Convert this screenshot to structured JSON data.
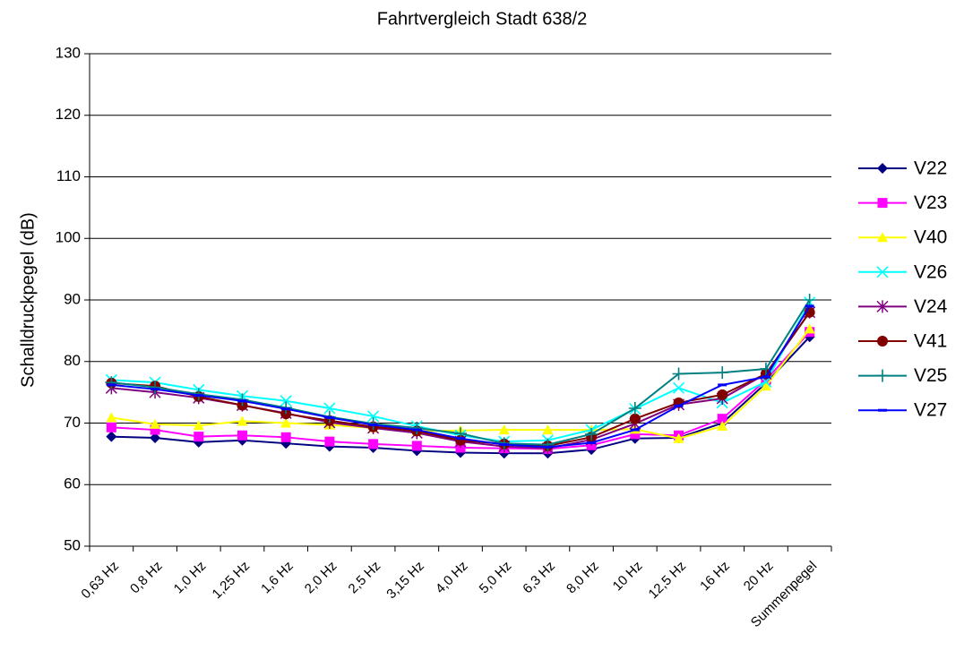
{
  "chart_data": {
    "type": "line",
    "title": "Fahrtvergleich Stadt 638/2",
    "y_label": "Schalldruckpegel (dB)",
    "categories": [
      "0,63 Hz",
      "0,8 Hz",
      "1,0 Hz",
      "1,25 Hz",
      "1,6 Hz",
      "2,0 Hz",
      "2,5 Hz",
      "3,15 Hz",
      "4,0 Hz",
      "5,0 Hz",
      "6,3 Hz",
      "8,0 Hz",
      "10 Hz",
      "12,5 Hz",
      "16 Hz",
      "20 Hz",
      "Summenpegel"
    ],
    "ylim": [
      50,
      130
    ],
    "yticks": [
      50,
      60,
      70,
      80,
      90,
      100,
      110,
      120,
      130
    ],
    "grid": true,
    "legend": "right",
    "series": [
      {
        "name": "V22",
        "color": "#000080",
        "marker": "diamond",
        "values": [
          67.8,
          67.6,
          66.9,
          67.2,
          66.7,
          66.2,
          66.0,
          65.5,
          65.2,
          65.1,
          65.1,
          65.7,
          67.5,
          67.6,
          70.0,
          76.5,
          84.0
        ]
      },
      {
        "name": "V23",
        "color": "#ff00ff",
        "marker": "square",
        "values": [
          69.3,
          68.9,
          67.8,
          68.0,
          67.7,
          67.0,
          66.6,
          66.3,
          66.0,
          65.9,
          65.8,
          66.4,
          68.2,
          68.0,
          70.7,
          77.0,
          84.8
        ]
      },
      {
        "name": "V40",
        "color": "#ffff00",
        "marker": "triangle",
        "values": [
          70.9,
          69.8,
          69.6,
          70.3,
          70.0,
          69.7,
          69.2,
          68.7,
          68.8,
          68.9,
          68.9,
          68.9,
          69.0,
          67.5,
          69.5,
          76.0,
          85.3
        ]
      },
      {
        "name": "V26",
        "color": "#00ffff",
        "marker": "x",
        "values": [
          77.0,
          76.6,
          75.4,
          74.4,
          73.6,
          72.4,
          71.1,
          69.5,
          68.0,
          67.0,
          67.2,
          68.9,
          72.3,
          75.7,
          73.3,
          76.7,
          89.6
        ]
      },
      {
        "name": "V24",
        "color": "#800080",
        "marker": "star",
        "values": [
          75.7,
          75.0,
          74.1,
          72.9,
          71.6,
          70.1,
          69.2,
          68.4,
          67.0,
          66.2,
          65.9,
          67.3,
          69.9,
          73.0,
          74.0,
          78.0,
          88.0
        ]
      },
      {
        "name": "V41",
        "color": "#800000",
        "marker": "circle",
        "values": [
          76.5,
          76.0,
          74.3,
          72.9,
          71.5,
          70.4,
          69.4,
          68.7,
          67.2,
          66.6,
          66.3,
          67.7,
          70.7,
          73.3,
          74.6,
          78.0,
          88.0
        ]
      },
      {
        "name": "V25",
        "color": "#008080",
        "marker": "plus",
        "values": [
          76.6,
          75.8,
          74.7,
          73.8,
          72.5,
          71.0,
          69.9,
          69.2,
          68.3,
          66.7,
          66.5,
          68.2,
          72.4,
          78.0,
          78.2,
          78.8,
          90.0
        ]
      },
      {
        "name": "V27",
        "color": "#0000ff",
        "marker": "dash",
        "values": [
          76.2,
          75.5,
          74.5,
          73.6,
          72.3,
          70.9,
          69.7,
          68.9,
          67.5,
          66.5,
          66.1,
          66.8,
          68.9,
          72.8,
          76.2,
          77.5,
          89.0
        ]
      }
    ]
  }
}
